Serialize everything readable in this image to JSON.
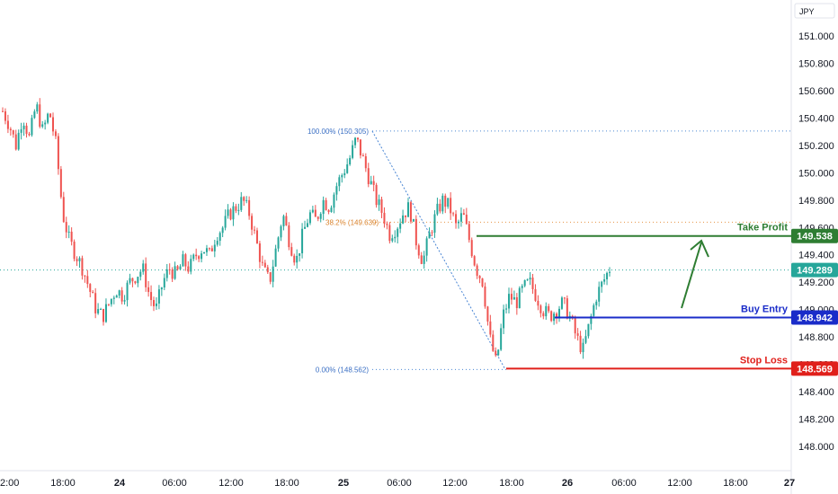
{
  "currency_label": "JPY",
  "colors": {
    "up": "#26a69a",
    "down": "#ef5350",
    "take_profit": "#2e7d32",
    "buy_entry": "#1a2cc9",
    "stop_loss": "#e0201b",
    "current_price": "#26a69a",
    "fib_line": "#4a86d4",
    "fib_mid": "#e69545"
  },
  "chart_data": {
    "type": "candlestick",
    "symbol_currency": "JPY",
    "y_ticks": [
      "151.000",
      "150.800",
      "150.600",
      "150.400",
      "150.200",
      "150.000",
      "149.800",
      "149.600",
      "149.400",
      "149.200",
      "149.000",
      "148.800",
      "148.600",
      "148.400",
      "148.200",
      "148.000"
    ],
    "ylim": [
      147.92,
      151.18
    ],
    "x_ticks": [
      "2:00",
      "18:00",
      "24",
      "06:00",
      "12:00",
      "18:00",
      "25",
      "06:00",
      "12:00",
      "18:00",
      "26",
      "06:00",
      "12:00",
      "18:00",
      "27"
    ],
    "x_tick_bold": [
      false,
      false,
      true,
      false,
      false,
      false,
      true,
      false,
      false,
      false,
      true,
      false,
      false,
      false,
      true
    ],
    "fib": {
      "top_label": "100.00% (150.305)",
      "top_price": 150.305,
      "mid_label": "38.2% (149.639)",
      "mid_price": 149.639,
      "bottom_label": "0.00% (148.562)",
      "bottom_price": 148.562
    },
    "levels": [
      {
        "name": "Take Profit",
        "price": 149.538,
        "price_label": "149.538",
        "color_key": "take_profit"
      },
      {
        "name": "Buy Entry",
        "price": 148.942,
        "price_label": "148.942",
        "color_key": "buy_entry"
      },
      {
        "name": "Stop Loss",
        "price": 148.569,
        "price_label": "148.569",
        "color_key": "stop_loss"
      }
    ],
    "current_price": {
      "price": 149.289,
      "label": "149.289"
    },
    "candles_close_path": [
      150.45,
      150.35,
      150.2,
      150.42,
      150.25,
      150.5,
      150.3,
      150.45,
      150.2,
      149.7,
      149.5,
      149.4,
      149.3,
      149.15,
      149.0,
      148.95,
      149.05,
      149.15,
      149.1,
      149.2,
      149.25,
      149.3,
      149.1,
      149.0,
      149.2,
      149.3,
      149.25,
      149.35,
      149.3,
      149.4,
      149.45,
      149.4,
      149.55,
      149.6,
      149.7,
      149.75,
      149.8,
      149.7,
      149.5,
      149.3,
      149.2,
      149.45,
      149.7,
      149.5,
      149.35,
      149.55,
      149.7,
      149.65,
      149.8,
      149.75,
      149.9,
      150.0,
      150.1,
      150.25,
      150.1,
      149.95,
      149.8,
      149.7,
      149.55,
      149.6,
      149.7,
      149.75,
      149.5,
      149.35,
      149.55,
      149.7,
      149.8,
      149.75,
      149.6,
      149.7,
      149.5,
      149.3,
      149.2,
      148.8,
      148.6,
      148.95,
      149.1,
      149.05,
      149.15,
      149.2,
      149.1,
      149.0,
      148.95,
      149.0,
      149.05,
      148.95,
      148.8,
      148.7,
      148.9,
      149.1,
      149.2,
      149.3
    ],
    "candles_count_hint": 230
  }
}
